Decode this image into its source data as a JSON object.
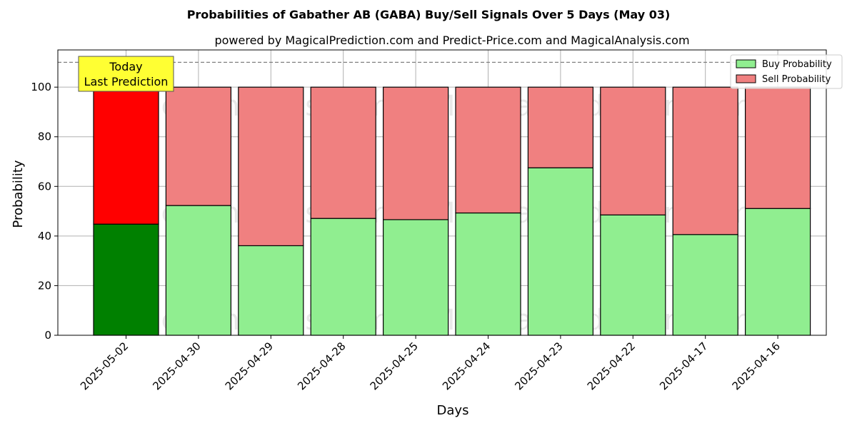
{
  "chart_data": {
    "type": "bar",
    "stacked": true,
    "title": "Probabilities of Gabather AB (GABA) Buy/Sell Signals Over 5 Days (May 03)",
    "subtitle": "powered by MagicalPrediction.com and Predict-Price.com and MagicalAnalysis.com",
    "xlabel": "Days",
    "ylabel": "Probability",
    "ylim": [
      0,
      115
    ],
    "yticks": [
      0,
      20,
      40,
      60,
      80,
      100
    ],
    "grid": true,
    "legend_position": "top-right",
    "categories": [
      "2025-05-02",
      "2025-04-30",
      "2025-04-29",
      "2025-04-28",
      "2025-04-25",
      "2025-04-24",
      "2025-04-23",
      "2025-04-22",
      "2025-04-17",
      "2025-04-16"
    ],
    "series": [
      {
        "name": "Buy Probability",
        "color": "#90ee90",
        "highlight_color": "#008000",
        "values": [
          44.8,
          52.3,
          36.1,
          47.1,
          46.6,
          49.3,
          67.5,
          48.5,
          40.6,
          51.1
        ]
      },
      {
        "name": "Sell Probability",
        "color": "#f08080",
        "highlight_color": "#ff0000",
        "values": [
          55.2,
          47.7,
          63.9,
          52.9,
          53.4,
          50.7,
          32.5,
          51.5,
          59.4,
          48.9
        ]
      }
    ],
    "highlight_index": 0,
    "reference_line": {
      "value": 110,
      "style": "dashed"
    },
    "annotation": {
      "lines": [
        "Today",
        "Last Prediction"
      ],
      "background": "#ffff33"
    },
    "watermarks": [
      "MagicalAnalysis.com",
      "MagicalPrediction.com"
    ]
  }
}
